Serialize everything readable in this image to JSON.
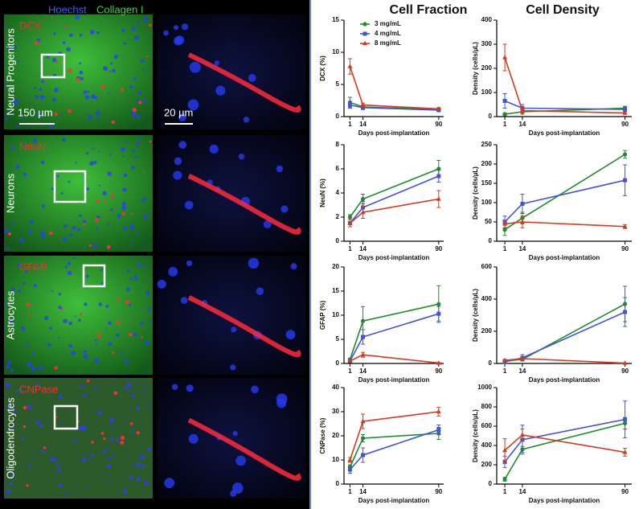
{
  "column_titles": [
    "Cell Fraction",
    "Cell Density"
  ],
  "image_panel": {
    "stain_labels": [
      "Hoechst",
      "Collagen I"
    ],
    "rows": [
      {
        "label": "Neural Progenitors",
        "marker": "DCX"
      },
      {
        "label": "Neurons",
        "marker": "NeuN"
      },
      {
        "label": "Astrocytes",
        "marker": "GFAP"
      },
      {
        "label": "Oligodendrocytes",
        "marker": "CNPase"
      }
    ],
    "scale_bars": [
      "150 µm",
      "20 µm"
    ]
  },
  "chart_data": [
    {
      "type": "line",
      "ylabel": "DCX (%)",
      "xlabel": "Days post-implantation",
      "x": [
        1,
        14,
        90
      ],
      "xlim": [
        -5,
        95
      ],
      "xticks": [
        1,
        14,
        90
      ],
      "ylim": [
        0,
        15
      ],
      "yticks": [
        0,
        5,
        10,
        15
      ],
      "legend": "upper right",
      "series": [
        {
          "name": "3 mg/mL",
          "color": "#1e8c2e",
          "marker": "circle",
          "values": [
            2.2,
            1.5,
            1.1
          ],
          "errors": [
            0.8,
            0.3,
            0.2
          ]
        },
        {
          "name": "4 mg/mL",
          "color": "#4352d8",
          "marker": "square",
          "values": [
            1.8,
            1.4,
            1.0
          ],
          "errors": [
            0.5,
            0.3,
            0.2
          ]
        },
        {
          "name": "8 mg/mL",
          "color": "#d43a1e",
          "marker": "triangle",
          "values": [
            7.8,
            1.8,
            1.2
          ],
          "errors": [
            1.2,
            0.3,
            0.2
          ]
        }
      ]
    },
    {
      "type": "line",
      "ylabel": "Density (cells/µL)",
      "xlabel": "Days post-implantation",
      "x": [
        1,
        14,
        90
      ],
      "xlim": [
        -5,
        95
      ],
      "xticks": [
        1,
        14,
        90
      ],
      "ylim": [
        0,
        400
      ],
      "yticks": [
        0,
        100,
        200,
        300,
        400
      ],
      "series": [
        {
          "color": "#1e8c2e",
          "marker": "circle",
          "values": [
            10,
            20,
            35
          ],
          "errors": [
            5,
            10,
            8
          ]
        },
        {
          "color": "#4352d8",
          "marker": "square",
          "values": [
            65,
            35,
            30
          ],
          "errors": [
            30,
            15,
            8
          ]
        },
        {
          "color": "#d43a1e",
          "marker": "triangle",
          "values": [
            245,
            25,
            15
          ],
          "errors": [
            55,
            10,
            5
          ]
        }
      ]
    },
    {
      "type": "line",
      "ylabel": "NeuN (%)",
      "xlabel": "Days post-implantation",
      "x": [
        1,
        14,
        90
      ],
      "xlim": [
        -5,
        95
      ],
      "xticks": [
        1,
        14,
        90
      ],
      "ylim": [
        0,
        8
      ],
      "yticks": [
        0,
        2,
        4,
        6,
        8
      ],
      "series": [
        {
          "color": "#1e8c2e",
          "marker": "circle",
          "values": [
            2.0,
            3.5,
            6.0
          ],
          "errors": [
            0.2,
            0.4,
            0.7
          ]
        },
        {
          "color": "#4352d8",
          "marker": "square",
          "values": [
            1.5,
            2.8,
            5.4
          ],
          "errors": [
            0.3,
            0.5,
            0.5
          ]
        },
        {
          "color": "#d43a1e",
          "marker": "triangle",
          "values": [
            1.5,
            2.4,
            3.5
          ],
          "errors": [
            0.3,
            0.5,
            0.7
          ]
        }
      ]
    },
    {
      "type": "line",
      "ylabel": "Density (cells/µL)",
      "xlabel": "Days post-implantation",
      "x": [
        1,
        14,
        90
      ],
      "xlim": [
        -5,
        95
      ],
      "xticks": [
        1,
        14,
        90
      ],
      "ylim": [
        0,
        250
      ],
      "yticks": [
        0,
        50,
        100,
        150,
        200,
        250
      ],
      "series": [
        {
          "color": "#1e8c2e",
          "marker": "circle",
          "values": [
            30,
            60,
            225
          ],
          "errors": [
            15,
            15,
            10
          ]
        },
        {
          "color": "#4352d8",
          "marker": "square",
          "values": [
            50,
            97,
            158
          ],
          "errors": [
            15,
            25,
            40
          ]
        },
        {
          "color": "#d43a1e",
          "marker": "triangle",
          "values": [
            45,
            50,
            38
          ],
          "errors": [
            10,
            15,
            5
          ]
        }
      ]
    },
    {
      "type": "line",
      "ylabel": "GFAP (%)",
      "xlabel": "Days post-implantation",
      "x": [
        1,
        14,
        90
      ],
      "xlim": [
        -5,
        95
      ],
      "xticks": [
        1,
        14,
        90
      ],
      "ylim": [
        0,
        20
      ],
      "yticks": [
        0,
        5,
        10,
        15,
        20
      ],
      "series": [
        {
          "color": "#1e8c2e",
          "marker": "circle",
          "values": [
            0.8,
            8.8,
            12.3
          ],
          "errors": [
            0.3,
            3,
            3.8
          ]
        },
        {
          "color": "#4352d8",
          "marker": "square",
          "values": [
            0.5,
            5.5,
            10.3
          ],
          "errors": [
            0.3,
            1.5,
            1.5
          ]
        },
        {
          "color": "#d43a1e",
          "marker": "triangle",
          "values": [
            0.5,
            1.8,
            0.1
          ],
          "errors": [
            0.2,
            0.5,
            0.1
          ]
        }
      ]
    },
    {
      "type": "line",
      "ylabel": "Density (cells/µL)",
      "xlabel": "Days post-implantation",
      "x": [
        1,
        14,
        90
      ],
      "xlim": [
        -5,
        95
      ],
      "xticks": [
        1,
        14,
        90
      ],
      "ylim": [
        0,
        600
      ],
      "yticks": [
        0,
        200,
        400,
        600
      ],
      "series": [
        {
          "color": "#1e8c2e",
          "marker": "circle",
          "values": [
            15,
            25,
            370
          ],
          "errors": [
            5,
            10,
            110
          ]
        },
        {
          "color": "#4352d8",
          "marker": "square",
          "values": [
            10,
            35,
            320
          ],
          "errors": [
            5,
            20,
            90
          ]
        },
        {
          "color": "#d43a1e",
          "marker": "triangle",
          "values": [
            20,
            30,
            2
          ],
          "errors": [
            5,
            5,
            1
          ]
        }
      ]
    },
    {
      "type": "line",
      "ylabel": "CNPase (%)",
      "xlabel": "Days post-implantation",
      "x": [
        1,
        14,
        90
      ],
      "xlim": [
        -5,
        95
      ],
      "xticks": [
        1,
        14,
        90
      ],
      "ylim": [
        0,
        40
      ],
      "yticks": [
        0,
        10,
        20,
        30,
        40
      ],
      "series": [
        {
          "color": "#1e8c2e",
          "marker": "circle",
          "values": [
            7,
            19,
            21
          ],
          "errors": [
            1,
            1.5,
            2.5
          ]
        },
        {
          "color": "#4352d8",
          "marker": "square",
          "values": [
            6,
            12,
            22.5
          ],
          "errors": [
            1.5,
            3,
            2
          ]
        },
        {
          "color": "#d43a1e",
          "marker": "triangle",
          "values": [
            10,
            26,
            30
          ],
          "errors": [
            1,
            3,
            1.8
          ]
        }
      ]
    },
    {
      "type": "line",
      "ylabel": "Density (cells/µL)",
      "xlabel": "Days post-implantation",
      "x": [
        1,
        14,
        90
      ],
      "xlim": [
        -5,
        95
      ],
      "xticks": [
        1,
        14,
        90
      ],
      "ylim": [
        0,
        1000
      ],
      "yticks": [
        0,
        200,
        400,
        600,
        800,
        1000
      ],
      "series": [
        {
          "color": "#1e8c2e",
          "marker": "circle",
          "values": [
            50,
            360,
            630
          ],
          "errors": [
            20,
            30,
            60
          ]
        },
        {
          "color": "#4352d8",
          "marker": "square",
          "values": [
            230,
            460,
            670
          ],
          "errors": [
            60,
            150,
            190
          ]
        },
        {
          "color": "#d43a1e",
          "marker": "triangle",
          "values": [
            350,
            510,
            330
          ],
          "errors": [
            120,
            60,
            40
          ]
        }
      ]
    }
  ]
}
